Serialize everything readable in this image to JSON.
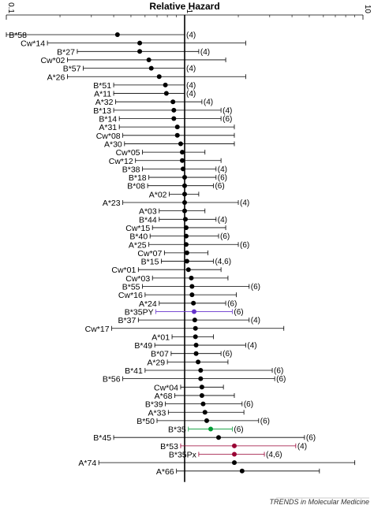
{
  "chart_data": {
    "type": "scatter",
    "title": "Relative Hazard",
    "x_scale": "log",
    "xlim": [
      0.1,
      10
    ],
    "x_ticks": [
      {
        "value": 0.1,
        "label": "0.1"
      },
      {
        "value": 1,
        "label": "1"
      },
      {
        "value": 10,
        "label": "10"
      }
    ],
    "reference_line": 1,
    "rows": [
      {
        "label": "B*58",
        "hr": 0.42,
        "lo": 0.1,
        "hi": 1.0,
        "ref": "(4)",
        "color": "#000000"
      },
      {
        "label": "Cw*14",
        "hr": 0.56,
        "lo": 0.17,
        "hi": 2.2,
        "ref": "",
        "color": "#000000"
      },
      {
        "label": "B*27",
        "hr": 0.56,
        "lo": 0.25,
        "hi": 1.2,
        "ref": "(4)",
        "color": "#000000"
      },
      {
        "label": "Cw*02",
        "hr": 0.63,
        "lo": 0.22,
        "hi": 1.7,
        "ref": "",
        "color": "#000000"
      },
      {
        "label": "B*57",
        "hr": 0.65,
        "lo": 0.27,
        "hi": 1.0,
        "ref": "(4)",
        "color": "#000000"
      },
      {
        "label": "A*26",
        "hr": 0.72,
        "lo": 0.22,
        "hi": 2.2,
        "ref": "",
        "color": "#000000"
      },
      {
        "label": "B*51",
        "hr": 0.78,
        "lo": 0.4,
        "hi": 1.0,
        "ref": "(4)",
        "color": "#000000"
      },
      {
        "label": "A*11",
        "hr": 0.79,
        "lo": 0.4,
        "hi": 1.0,
        "ref": "(4)",
        "color": "#000000"
      },
      {
        "label": "A*32",
        "hr": 0.86,
        "lo": 0.41,
        "hi": 1.25,
        "ref": "(4)",
        "color": "#000000"
      },
      {
        "label": "B*13",
        "hr": 0.87,
        "lo": 0.4,
        "hi": 1.6,
        "ref": "(4)",
        "color": "#000000"
      },
      {
        "label": "B*14",
        "hr": 0.87,
        "lo": 0.43,
        "hi": 1.6,
        "ref": "(6)",
        "color": "#000000"
      },
      {
        "label": "A*31",
        "hr": 0.91,
        "lo": 0.43,
        "hi": 1.9,
        "ref": "",
        "color": "#000000"
      },
      {
        "label": "Cw*08",
        "hr": 0.91,
        "lo": 0.45,
        "hi": 1.9,
        "ref": "",
        "color": "#000000"
      },
      {
        "label": "A*30",
        "hr": 0.95,
        "lo": 0.46,
        "hi": 1.9,
        "ref": "",
        "color": "#000000"
      },
      {
        "label": "Cw*05",
        "hr": 0.97,
        "lo": 0.58,
        "hi": 1.3,
        "ref": "",
        "color": "#000000"
      },
      {
        "label": "Cw*12",
        "hr": 0.97,
        "lo": 0.53,
        "hi": 1.6,
        "ref": "",
        "color": "#000000"
      },
      {
        "label": "B*38",
        "hr": 0.98,
        "lo": 0.58,
        "hi": 1.5,
        "ref": "(4)",
        "color": "#000000"
      },
      {
        "label": "B*18",
        "hr": 1.0,
        "lo": 0.63,
        "hi": 1.5,
        "ref": "(6)",
        "color": "#000000"
      },
      {
        "label": "B*08",
        "hr": 1.0,
        "lo": 0.62,
        "hi": 1.45,
        "ref": "(6)",
        "color": "#000000"
      },
      {
        "label": "A*02",
        "hr": 1.0,
        "lo": 0.82,
        "hi": 1.2,
        "ref": "",
        "color": "#000000"
      },
      {
        "label": "A*23",
        "hr": 1.0,
        "lo": 0.45,
        "hi": 2.0,
        "ref": "(4)",
        "color": "#000000"
      },
      {
        "label": "A*03",
        "hr": 1.0,
        "lo": 0.72,
        "hi": 1.3,
        "ref": "",
        "color": "#000000"
      },
      {
        "label": "B*44",
        "hr": 1.01,
        "lo": 0.72,
        "hi": 1.5,
        "ref": "(4)",
        "color": "#000000"
      },
      {
        "label": "Cw*15",
        "hr": 1.02,
        "lo": 0.66,
        "hi": 1.7,
        "ref": "",
        "color": "#000000"
      },
      {
        "label": "B*40",
        "hr": 1.02,
        "lo": 0.64,
        "hi": 1.55,
        "ref": "(6)",
        "color": "#000000"
      },
      {
        "label": "A*25",
        "hr": 1.02,
        "lo": 0.63,
        "hi": 2.0,
        "ref": "(6)",
        "color": "#000000"
      },
      {
        "label": "Cw*07",
        "hr": 1.03,
        "lo": 0.77,
        "hi": 1.35,
        "ref": "",
        "color": "#000000"
      },
      {
        "label": "B*15",
        "hr": 1.03,
        "lo": 0.74,
        "hi": 1.45,
        "ref": "(4,6)",
        "color": "#000000"
      },
      {
        "label": "Cw*01",
        "hr": 1.05,
        "lo": 0.55,
        "hi": 1.6,
        "ref": "",
        "color": "#000000"
      },
      {
        "label": "Cw*03",
        "hr": 1.09,
        "lo": 0.66,
        "hi": 1.75,
        "ref": "",
        "color": "#000000"
      },
      {
        "label": "B*55",
        "hr": 1.1,
        "lo": 0.58,
        "hi": 2.3,
        "ref": "(6)",
        "color": "#000000"
      },
      {
        "label": "Cw*16",
        "hr": 1.1,
        "lo": 0.6,
        "hi": 1.95,
        "ref": "",
        "color": "#000000"
      },
      {
        "label": "A*24",
        "hr": 1.12,
        "lo": 0.72,
        "hi": 1.7,
        "ref": "(6)",
        "color": "#000000"
      },
      {
        "label": "B*35PY",
        "hr": 1.13,
        "lo": 0.69,
        "hi": 1.85,
        "ref": "(6)",
        "color": "#6633cc"
      },
      {
        "label": "B*37",
        "hr": 1.14,
        "lo": 0.55,
        "hi": 2.3,
        "ref": "(4)",
        "color": "#000000"
      },
      {
        "label": "Cw*17",
        "hr": 1.15,
        "lo": 0.39,
        "hi": 3.6,
        "ref": "",
        "color": "#000000"
      },
      {
        "label": "A*01",
        "hr": 1.15,
        "lo": 0.85,
        "hi": 1.45,
        "ref": "",
        "color": "#000000"
      },
      {
        "label": "B*49",
        "hr": 1.16,
        "lo": 0.68,
        "hi": 2.2,
        "ref": "(4)",
        "color": "#000000"
      },
      {
        "label": "B*07",
        "hr": 1.16,
        "lo": 0.84,
        "hi": 1.6,
        "ref": "(6)",
        "color": "#000000"
      },
      {
        "label": "A*29",
        "hr": 1.19,
        "lo": 0.8,
        "hi": 1.75,
        "ref": "",
        "color": "#000000"
      },
      {
        "label": "B*41",
        "hr": 1.23,
        "lo": 0.6,
        "hi": 3.1,
        "ref": "(6)",
        "color": "#000000"
      },
      {
        "label": "B*56",
        "hr": 1.23,
        "lo": 0.45,
        "hi": 3.2,
        "ref": "(6)",
        "color": "#000000"
      },
      {
        "label": "Cw*04",
        "hr": 1.25,
        "lo": 0.95,
        "hi": 1.65,
        "ref": "",
        "color": "#000000"
      },
      {
        "label": "A*68",
        "hr": 1.25,
        "lo": 0.88,
        "hi": 1.9,
        "ref": "",
        "color": "#000000"
      },
      {
        "label": "B*39",
        "hr": 1.27,
        "lo": 0.78,
        "hi": 2.1,
        "ref": "(6)",
        "color": "#000000"
      },
      {
        "label": "A*33",
        "hr": 1.3,
        "lo": 0.81,
        "hi": 2.15,
        "ref": "",
        "color": "#000000"
      },
      {
        "label": "B*50",
        "hr": 1.33,
        "lo": 0.7,
        "hi": 2.6,
        "ref": "(6)",
        "color": "#000000"
      },
      {
        "label": "B*35",
        "hr": 1.4,
        "lo": 1.05,
        "hi": 1.85,
        "ref": "(6)",
        "color": "#009933"
      },
      {
        "label": "B*45",
        "hr": 1.55,
        "lo": 0.4,
        "hi": 4.7,
        "ref": "(6)",
        "color": "#000000"
      },
      {
        "label": "B*53",
        "hr": 1.9,
        "lo": 0.95,
        "hi": 4.2,
        "ref": "(4)",
        "color": "#990033"
      },
      {
        "label": "B*35Px",
        "hr": 1.9,
        "lo": 1.2,
        "hi": 2.8,
        "ref": "(4,6)",
        "color": "#990033"
      },
      {
        "label": "A*74",
        "hr": 1.9,
        "lo": 0.33,
        "hi": 9.0,
        "ref": "",
        "color": "#000000"
      },
      {
        "label": "A*66",
        "hr": 2.1,
        "lo": 0.9,
        "hi": 5.7,
        "ref": "",
        "color": "#000000"
      }
    ]
  },
  "credit": "TRENDS in Molecular Medicine"
}
